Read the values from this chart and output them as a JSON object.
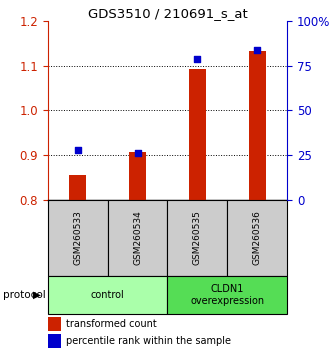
{
  "title": "GDS3510 / 210691_s_at",
  "samples": [
    "GSM260533",
    "GSM260534",
    "GSM260535",
    "GSM260536"
  ],
  "red_values": [
    0.855,
    0.907,
    1.093,
    1.133
  ],
  "blue_percentiles": [
    28,
    26,
    79,
    84
  ],
  "ylim_left": [
    0.8,
    1.2
  ],
  "ylim_right": [
    0,
    100
  ],
  "yticks_left": [
    0.8,
    0.9,
    1.0,
    1.1,
    1.2
  ],
  "yticks_right": [
    0,
    25,
    50,
    75,
    100
  ],
  "ytick_labels_right": [
    "0",
    "25",
    "50",
    "75",
    "100%"
  ],
  "groups": [
    {
      "label": "control",
      "samples": [
        0,
        1
      ],
      "color": "#aaffaa"
    },
    {
      "label": "CLDN1\noverexpression",
      "samples": [
        2,
        3
      ],
      "color": "#55dd55"
    }
  ],
  "protocol_label": "protocol",
  "legend_red": "transformed count",
  "legend_blue": "percentile rank within the sample",
  "bar_color": "#cc2200",
  "dot_color": "#0000cc",
  "bar_width": 0.28,
  "gray_color": "#cccccc",
  "background_color": "#ffffff"
}
